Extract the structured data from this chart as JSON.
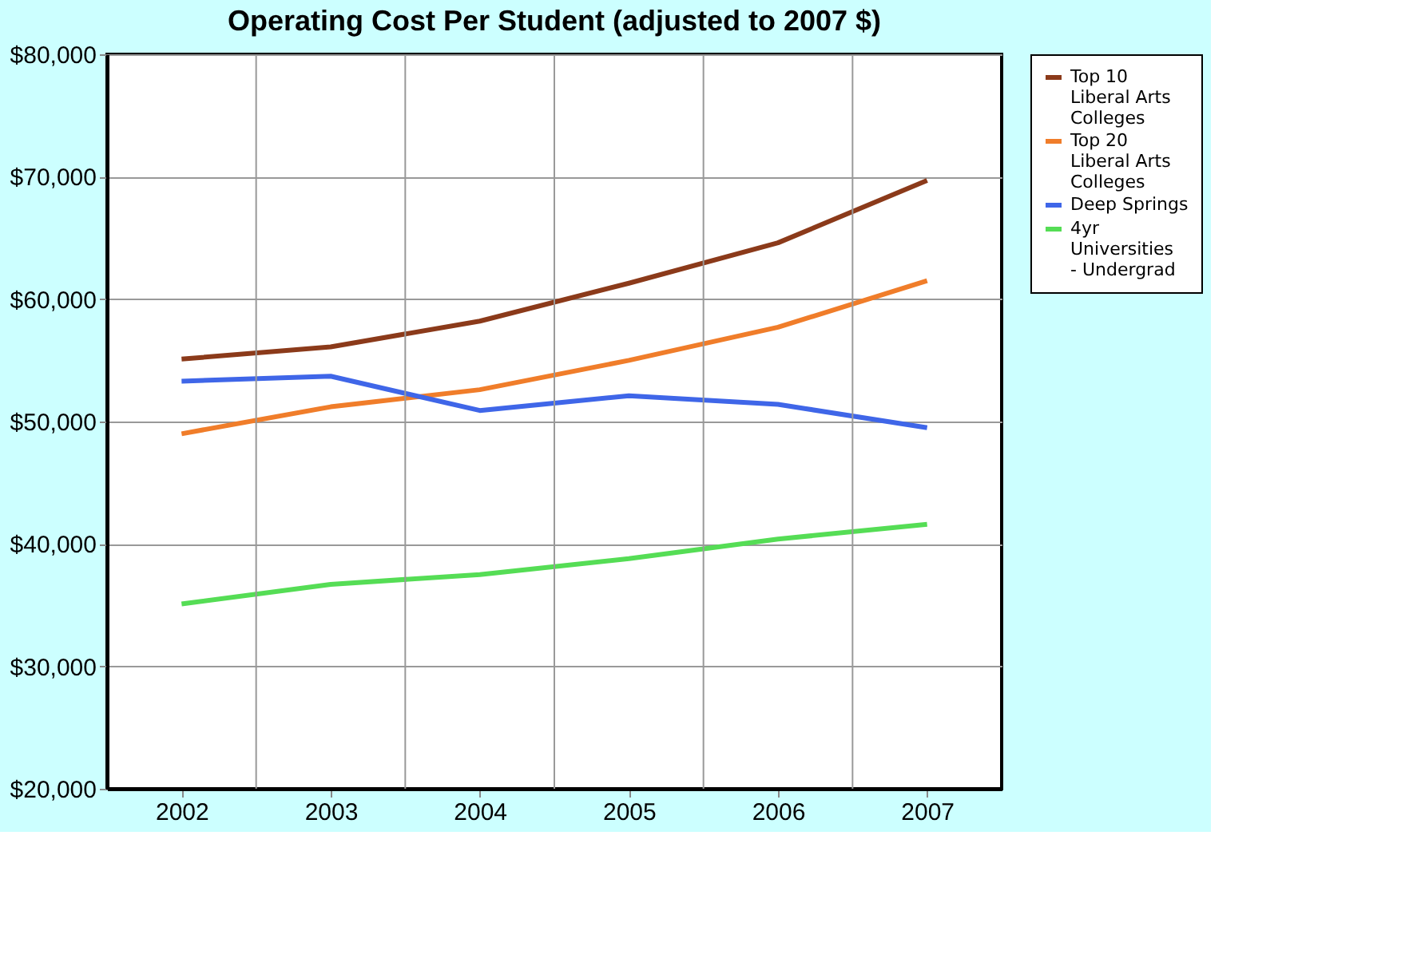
{
  "chart_data": {
    "type": "line",
    "title": "Operating Cost Per Student (adjusted to 2007 $)",
    "categories": [
      "2002",
      "2003",
      "2004",
      "2005",
      "2006",
      "2007"
    ],
    "series": [
      {
        "name": "Top 10 Liberal Arts Colleges",
        "color": "#8b3a1a",
        "values": [
          55100,
          56100,
          58200,
          61300,
          64600,
          69700
        ]
      },
      {
        "name": "Top 20 Liberal Arts Colleges",
        "color": "#f07d2a",
        "values": [
          49000,
          51200,
          52600,
          55000,
          57700,
          61500
        ]
      },
      {
        "name": "Deep Springs",
        "color": "#3f66e8",
        "values": [
          53300,
          53700,
          50900,
          52100,
          51400,
          49500
        ]
      },
      {
        "name": "4yr Universities - Undergrad",
        "color": "#55dd55",
        "values": [
          35100,
          36700,
          37500,
          38800,
          40400,
          41600
        ]
      }
    ],
    "ylim": [
      20000,
      80000
    ],
    "yticks": [
      {
        "value": 20000,
        "label": "$20,000"
      },
      {
        "value": 30000,
        "label": "$30,000"
      },
      {
        "value": 40000,
        "label": "$40,000"
      },
      {
        "value": 50000,
        "label": "$50,000"
      },
      {
        "value": 60000,
        "label": "$60,000"
      },
      {
        "value": 70000,
        "label": "$70,000"
      },
      {
        "value": 80000,
        "label": "$80,000"
      }
    ],
    "grid": true,
    "legend": "right",
    "marker": "none",
    "line_style": "solid"
  }
}
